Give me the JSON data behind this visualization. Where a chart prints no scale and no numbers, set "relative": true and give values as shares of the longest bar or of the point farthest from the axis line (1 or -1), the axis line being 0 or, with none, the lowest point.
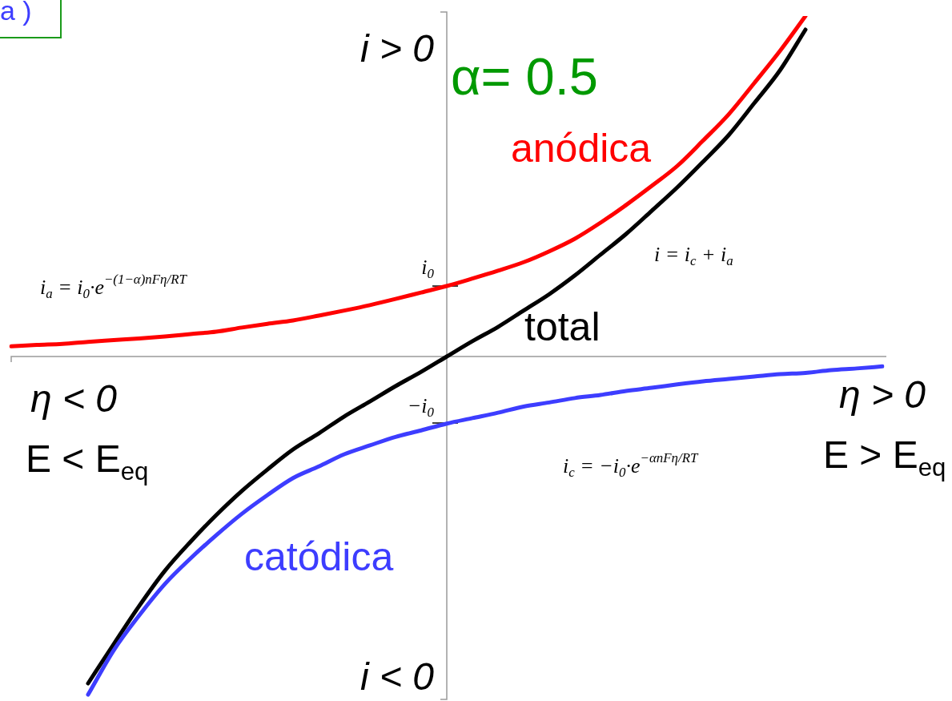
{
  "chart_data": {
    "type": "line",
    "relative": true,
    "categories": [
      null,
      null,
      null,
      null,
      null,
      null,
      null,
      null,
      null,
      null,
      null,
      null,
      null,
      null,
      null,
      null,
      null,
      null,
      null,
      null,
      null,
      null,
      null,
      null,
      null,
      null,
      null,
      null,
      null,
      null,
      null,
      null,
      null,
      null,
      null
    ],
    "series": [
      {
        "name": "anódica",
        "color": "#ff0000",
        "values": [
          0.03,
          0.034,
          0.037,
          0.043,
          0.048,
          0.053,
          0.059,
          0.066,
          0.073,
          0.085,
          0.096,
          0.106,
          0.12,
          0.135,
          0.151,
          0.169,
          0.188,
          0.207,
          0.229,
          0.252,
          0.277,
          0.309,
          0.346,
          0.393,
          0.445,
          0.501,
          0.56,
          0.634,
          0.711,
          0.803,
          0.897,
          1,
          null,
          null,
          null
        ]
      },
      {
        "name": "catódica",
        "color": "#3d3dff",
        "values": [
          null,
          null,
          null,
          -0.993,
          -0.863,
          -0.76,
          -0.668,
          -0.593,
          -0.525,
          -0.462,
          -0.407,
          -0.357,
          -0.323,
          -0.287,
          -0.261,
          -0.236,
          -0.217,
          -0.197,
          -0.181,
          -0.165,
          -0.147,
          -0.135,
          -0.122,
          -0.113,
          -0.101,
          -0.092,
          -0.082,
          -0.073,
          -0.066,
          -0.059,
          -0.052,
          -0.048,
          -0.04,
          -0.035,
          -0.029
        ]
      },
      {
        "name": "total",
        "color": "#000000",
        "values": [
          null,
          null,
          null,
          -0.96,
          -0.845,
          -0.732,
          -0.629,
          -0.544,
          -0.466,
          -0.395,
          -0.332,
          -0.273,
          -0.226,
          -0.176,
          -0.132,
          -0.087,
          -0.045,
          0,
          0.045,
          0.087,
          0.135,
          0.183,
          0.238,
          0.299,
          0.36,
          0.428,
          0.497,
          0.572,
          0.65,
          0.744,
          0.84,
          0.96,
          null,
          null,
          null
        ]
      }
    ],
    "annotations": [
      "a )",
      "i > 0",
      "i < 0",
      "η < 0",
      "E < E$_{eq}$",
      "η > 0",
      "E > E$_{eq}$",
      "α= 0.5",
      "i$_{a}$ = i$_{0}$·e$^{−(1−α)nFη/RT}$",
      "i = i$_{c}$ + i$_{a}$",
      "i$_{c}$ = −i$_{0}$·e$^{−αnFη/RT}$",
      {
        "text": "i$_{0}$",
        "y": 0.207
      },
      "−i$_{0}$"
    ]
  }
}
